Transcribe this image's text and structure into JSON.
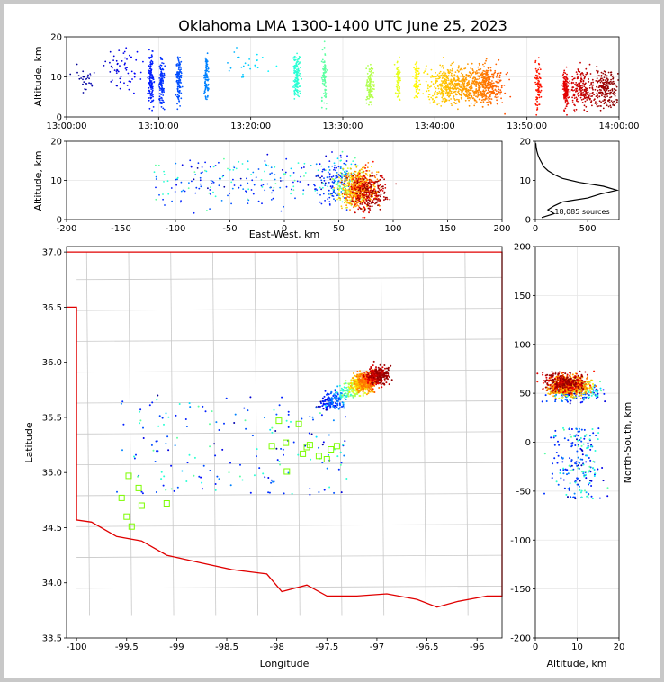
{
  "title": "Oklahoma LMA 1300-1400 UTC June 25, 2023",
  "chart_data": [
    {
      "panel": "altitude-time",
      "type": "scatter",
      "xlabel": "",
      "ylabel": "Altitude, km",
      "x_ticks": [
        "13:00:00",
        "13:10:00",
        "13:20:00",
        "13:30:00",
        "13:40:00",
        "13:50:00",
        "14:00:00"
      ],
      "xlim_minutes": [
        0,
        60
      ],
      "ylim": [
        0,
        20
      ],
      "y_ticks": [
        0,
        10,
        20
      ],
      "grid": true,
      "colormap": "jet (time)",
      "clusters": [
        {
          "t": 2,
          "spread": 1.2,
          "alt": 9,
          "alt_sd": 3,
          "n": 30
        },
        {
          "t": 6,
          "spread": 2,
          "alt": 12,
          "alt_sd": 4,
          "n": 60
        },
        {
          "t": 9.2,
          "spread": 0.3,
          "alt": 9,
          "alt_sd": 5,
          "n": 120
        },
        {
          "t": 10.3,
          "spread": 0.3,
          "alt": 8,
          "alt_sd": 5,
          "n": 110
        },
        {
          "t": 12.2,
          "spread": 0.3,
          "alt": 9,
          "alt_sd": 5,
          "n": 110
        },
        {
          "t": 15.2,
          "spread": 0.2,
          "alt": 10,
          "alt_sd": 5,
          "n": 90
        },
        {
          "t": 20,
          "spread": 2.5,
          "alt": 13,
          "alt_sd": 4,
          "n": 25
        },
        {
          "t": 25,
          "spread": 0.4,
          "alt": 10,
          "alt_sd": 5,
          "n": 130
        },
        {
          "t": 28,
          "spread": 0.3,
          "alt": 10,
          "alt_sd": 5,
          "n": 80
        },
        {
          "t": 33,
          "spread": 0.4,
          "alt": 8,
          "alt_sd": 4,
          "n": 110
        },
        {
          "t": 36,
          "spread": 0.3,
          "alt": 9,
          "alt_sd": 4,
          "n": 70
        },
        {
          "t": 38,
          "spread": 0.3,
          "alt": 9,
          "alt_sd": 4,
          "n": 70
        },
        {
          "t": 42,
          "spread": 3,
          "alt": 8,
          "alt_sd": 4,
          "n": 500
        },
        {
          "t": 45.5,
          "spread": 1.8,
          "alt": 8,
          "alt_sd": 4,
          "n": 400
        },
        {
          "t": 51.2,
          "spread": 0.3,
          "alt": 8,
          "alt_sd": 5,
          "n": 80
        },
        {
          "t": 54.2,
          "spread": 0.3,
          "alt": 7,
          "alt_sd": 4,
          "n": 120
        },
        {
          "t": 56,
          "spread": 1.4,
          "alt": 7,
          "alt_sd": 4,
          "n": 200
        },
        {
          "t": 58.5,
          "spread": 1.2,
          "alt": 7,
          "alt_sd": 4,
          "n": 200
        }
      ]
    },
    {
      "panel": "altitude-eastwest",
      "type": "scatter",
      "xlabel": "East-West, km",
      "ylabel": "Altitude, km",
      "xlim": [
        -200,
        200
      ],
      "x_ticks": [
        -200,
        -150,
        -100,
        -50,
        0,
        50,
        100,
        150,
        200
      ],
      "ylim": [
        0,
        20
      ],
      "y_ticks": [
        0,
        10,
        20
      ],
      "grid": true
    },
    {
      "panel": "altitude-histogram",
      "type": "line",
      "xlim": [
        0,
        800
      ],
      "x_ticks": [
        0,
        500
      ],
      "ylim": [
        0,
        20
      ],
      "y_ticks": [
        0,
        10,
        20
      ],
      "counts_by_km": [
        60,
        180,
        120,
        180,
        260,
        500,
        620,
        780,
        650,
        420,
        260,
        180,
        120,
        80,
        60,
        40,
        25,
        15,
        8,
        4
      ],
      "annotation": "18,085 sources"
    },
    {
      "panel": "plan-view",
      "type": "scatter",
      "xlabel": "Longitude",
      "ylabel": "Latitude",
      "xlim": [
        -100.1,
        -95.75
      ],
      "ylim": [
        33.5,
        37.05
      ],
      "x_ticks": [
        -100.0,
        -99.5,
        -99.0,
        -98.5,
        -98.0,
        -97.5,
        -97.0,
        -96.5,
        -96.0
      ],
      "y_ticks": [
        33.5,
        34.0,
        34.5,
        35.0,
        35.5,
        36.0,
        36.5,
        37.0
      ],
      "stations": [
        [
          -99.48,
          34.97
        ],
        [
          -99.38,
          34.86
        ],
        [
          -99.55,
          34.77
        ],
        [
          -99.35,
          34.7
        ],
        [
          -99.5,
          34.6
        ],
        [
          -99.45,
          34.51
        ],
        [
          -99.1,
          34.72
        ],
        [
          -98.05,
          35.24
        ],
        [
          -97.98,
          35.47
        ],
        [
          -97.91,
          35.27
        ],
        [
          -97.9,
          35.01
        ],
        [
          -97.78,
          35.44
        ],
        [
          -97.74,
          35.17
        ],
        [
          -97.7,
          35.23
        ],
        [
          -97.67,
          35.25
        ],
        [
          -97.58,
          35.15
        ],
        [
          -97.5,
          35.12
        ],
        [
          -97.46,
          35.21
        ],
        [
          -97.4,
          35.24
        ]
      ]
    },
    {
      "panel": "northsouth-altitude",
      "type": "scatter",
      "xlabel": "Altitude, km",
      "ylabel": "North-South, km",
      "xlim": [
        0,
        20
      ],
      "x_ticks": [
        0,
        10,
        20
      ],
      "ylim": [
        -200,
        200
      ],
      "y_ticks": [
        -200,
        -150,
        -100,
        -50,
        0,
        50,
        100,
        150,
        200
      ]
    }
  ],
  "colors": {
    "border": "#e00000",
    "counties": "#c8c8c8",
    "station": "#7cfc00",
    "grid": "#e6e6e6"
  }
}
